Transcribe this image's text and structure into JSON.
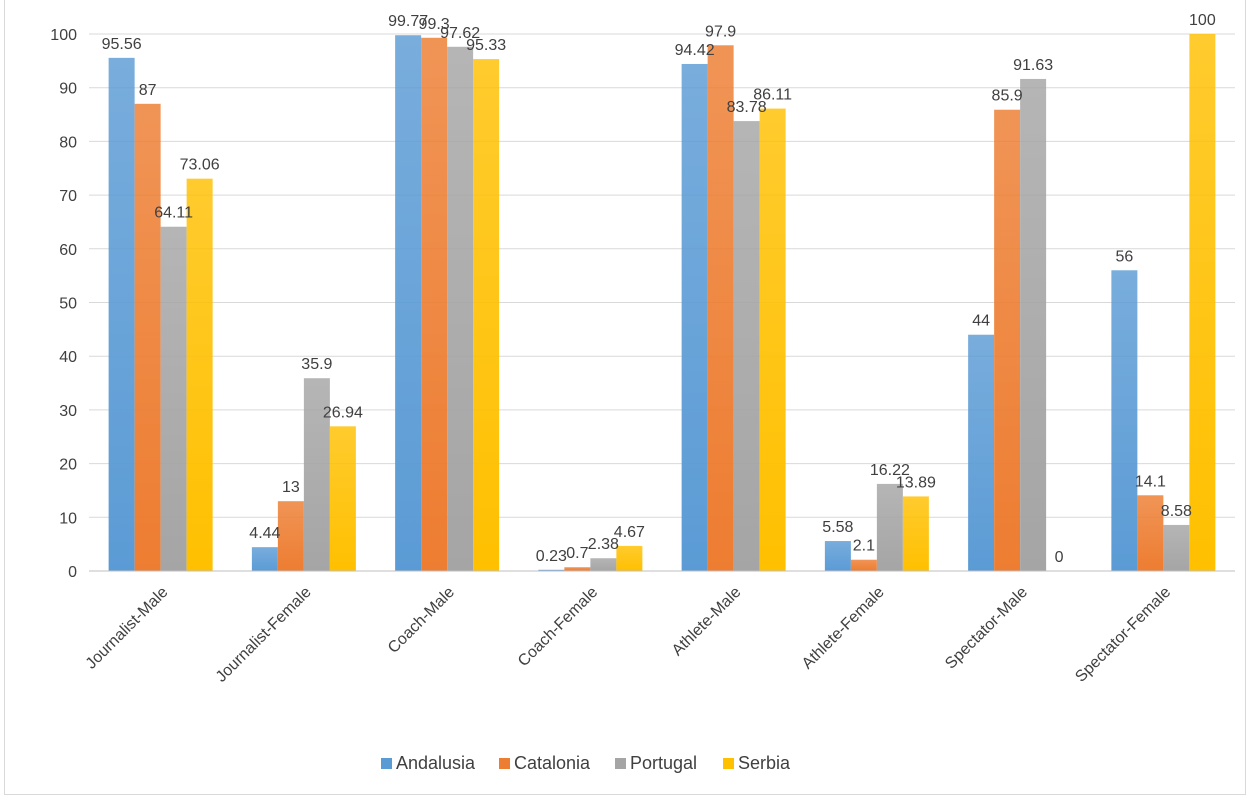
{
  "chart_data": {
    "type": "bar",
    "title": "",
    "xlabel": "",
    "ylabel": "",
    "ylim": [
      0,
      100
    ],
    "yticks": [
      0,
      10,
      20,
      30,
      40,
      50,
      60,
      70,
      80,
      90,
      100
    ],
    "grid": true,
    "legend_position": "bottom",
    "categories": [
      "Journalist-Male",
      "Journalist-Female",
      "Coach-Male",
      "Coach-Female",
      "Athlete-Male",
      "Athlete-Female",
      "Spectator-Male",
      "Spectator-Female"
    ],
    "series": [
      {
        "name": "Andalusia",
        "color": "#5b9bd5",
        "values": [
          95.56,
          4.44,
          99.77,
          0.23,
          94.42,
          5.58,
          44,
          56
        ]
      },
      {
        "name": "Catalonia",
        "color": "#ed7d31",
        "values": [
          87,
          13,
          99.3,
          0.7,
          97.9,
          2.1,
          85.9,
          14.1
        ]
      },
      {
        "name": "Portugal",
        "color": "#a5a5a5",
        "values": [
          64.11,
          35.9,
          97.62,
          2.38,
          83.78,
          16.22,
          91.63,
          8.58
        ]
      },
      {
        "name": "Serbia",
        "color": "#ffc000",
        "values": [
          73.06,
          26.94,
          95.33,
          4.67,
          86.11,
          13.89,
          0,
          100
        ]
      }
    ],
    "data_labels": [
      [
        "95.56",
        "4.44",
        "99.77",
        "0.23",
        "94.42",
        "5.58",
        "44",
        "56"
      ],
      [
        "87",
        "13",
        "99.3",
        "0.7",
        "97.9",
        "2.1",
        "85.9",
        "14.1"
      ],
      [
        "64.11",
        "35.9",
        "97.62",
        "2.38",
        "83.78",
        "16.22",
        "91.63",
        "8.58"
      ],
      [
        "73.06",
        "26.94",
        "95.33",
        "4.67",
        "86.11",
        "13.89",
        "0",
        "100"
      ]
    ]
  }
}
